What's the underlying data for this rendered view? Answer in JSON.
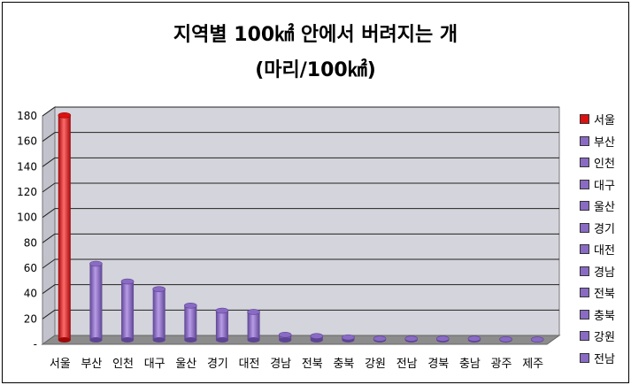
{
  "chart_data": {
    "type": "bar",
    "title": "지역별 100㎢ 안에서 버려지는 개",
    "subtitle": "(마리/100㎢)",
    "categories": [
      "서울",
      "부산",
      "인천",
      "대구",
      "울산",
      "경기",
      "대전",
      "경남",
      "전북",
      "충북",
      "강원",
      "전남",
      "경북",
      "충남",
      "광주",
      "제주"
    ],
    "values": [
      177,
      60,
      46,
      40,
      27,
      23,
      22,
      4,
      3,
      2,
      1,
      1,
      1,
      1,
      0.5,
      0.3
    ],
    "ylim": [
      0,
      180
    ],
    "yticks": [
      "-",
      "20",
      "40",
      "60",
      "80",
      "100",
      "120",
      "140",
      "160",
      "180"
    ],
    "legend_entries": [
      "서울",
      "부산",
      "인천",
      "대구",
      "울산",
      "경기",
      "대전",
      "경남",
      "전북",
      "충북",
      "강원",
      "전남"
    ],
    "legend_position": "right",
    "grid": true,
    "colors": {
      "highlight": "#dd1111",
      "bar": "#8a6bc4",
      "wall": "#d4d4dc",
      "floor": "#8c8c8c"
    }
  }
}
